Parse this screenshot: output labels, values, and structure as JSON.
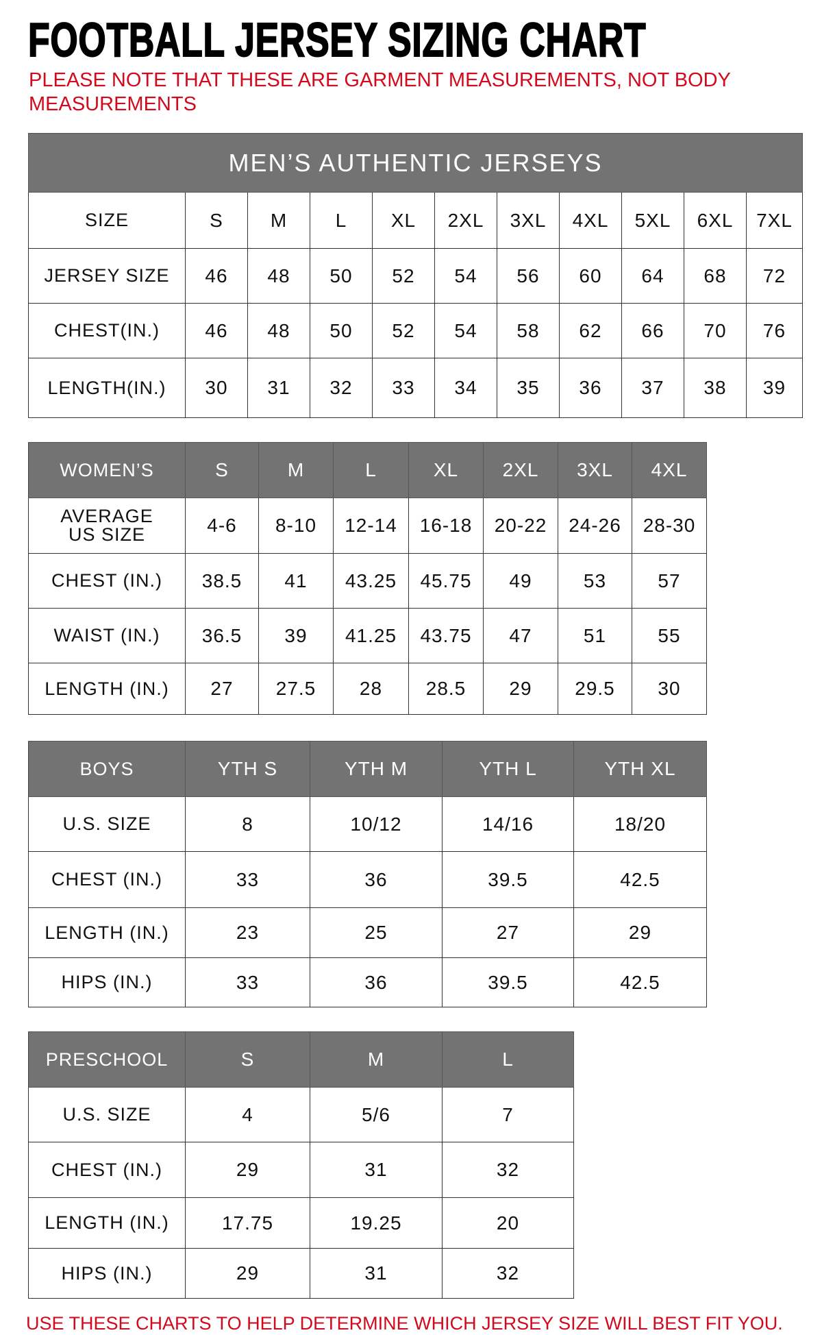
{
  "title": "FOOTBALL JERSEY SIZING CHART",
  "note": "PLEASE NOTE THAT THESE ARE GARMENT MEASUREMENTS, NOT BODY MEASUREMENTS",
  "footer": "USE THESE CHARTS TO HELP DETERMINE WHICH JERSEY SIZE WILL BEST FIT YOU.",
  "colors": {
    "header_gray": "#737373",
    "note_red": "#d10a1e"
  },
  "tables": [
    {
      "id": "mens",
      "caption": "MEN’S AUTHENTIC JERSEYS",
      "header": [
        "SIZE",
        "S",
        "M",
        "L",
        "XL",
        "2XL",
        "3XL",
        "4XL",
        "5XL",
        "6XL",
        "7XL"
      ],
      "header_gray": false,
      "rows": [
        [
          "JERSEY SIZE",
          "46",
          "48",
          "50",
          "52",
          "54",
          "56",
          "60",
          "64",
          "68",
          "72"
        ],
        [
          "CHEST(IN.)",
          "46",
          "48",
          "50",
          "52",
          "54",
          "58",
          "62",
          "66",
          "70",
          "76"
        ],
        [
          "LENGTH(IN.)",
          "30",
          "31",
          "32",
          "33",
          "34",
          "35",
          "36",
          "37",
          "38",
          "39"
        ]
      ]
    },
    {
      "id": "womens",
      "header": [
        "WOMEN’S",
        "S",
        "M",
        "L",
        "XL",
        "2XL",
        "3XL",
        "4XL"
      ],
      "header_gray": true,
      "rows": [
        [
          "AVERAGE US SIZE",
          "4-6",
          "8-10",
          "12-14",
          "16-18",
          "20-22",
          "24-26",
          "28-30"
        ],
        [
          "CHEST (IN.)",
          "38.5",
          "41",
          "43.25",
          "45.75",
          "49",
          "53",
          "57"
        ],
        [
          "WAIST (IN.)",
          "36.5",
          "39",
          "41.25",
          "43.75",
          "47",
          "51",
          "55"
        ],
        [
          "LENGTH (IN.)",
          "27",
          "27.5",
          "28",
          "28.5",
          "29",
          "29.5",
          "30"
        ]
      ]
    },
    {
      "id": "boys",
      "header": [
        "BOYS",
        "YTH S",
        "YTH M",
        "YTH L",
        "YTH XL"
      ],
      "header_gray": true,
      "rows": [
        [
          "U.S. SIZE",
          "8",
          "10/12",
          "14/16",
          "18/20"
        ],
        [
          "CHEST (IN.)",
          "33",
          "36",
          "39.5",
          "42.5"
        ],
        [
          "LENGTH (IN.)",
          "23",
          "25",
          "27",
          "29"
        ],
        [
          "HIPS (IN.)",
          "33",
          "36",
          "39.5",
          "42.5"
        ]
      ]
    },
    {
      "id": "preschool",
      "header": [
        "PRESCHOOL",
        "S",
        "M",
        "L"
      ],
      "header_gray": true,
      "rows": [
        [
          "U.S. SIZE",
          "4",
          "5/6",
          "7"
        ],
        [
          "CHEST (IN.)",
          "29",
          "31",
          "32"
        ],
        [
          "LENGTH (IN.)",
          "17.75",
          "19.25",
          "20"
        ],
        [
          "HIPS (IN.)",
          "29",
          "31",
          "32"
        ]
      ]
    }
  ]
}
